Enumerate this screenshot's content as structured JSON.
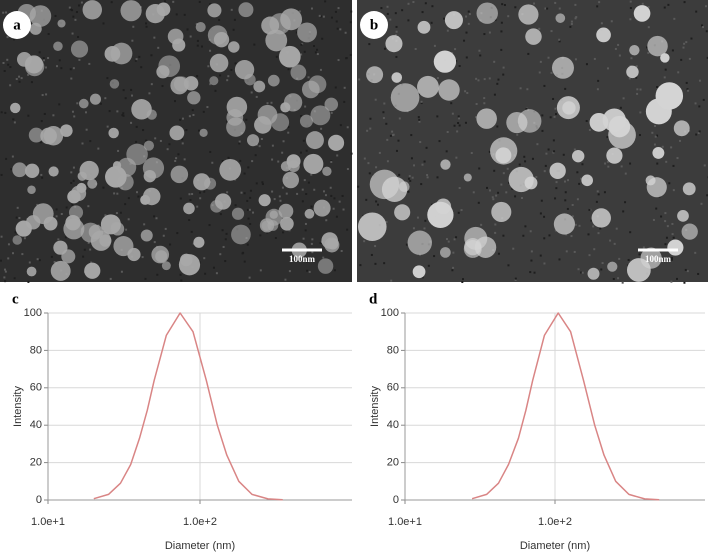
{
  "images": [
    {
      "label": "a",
      "scale_bar": "100nm"
    },
    {
      "label": "b",
      "scale_bar": "100nm"
    }
  ],
  "chart_data": [
    {
      "type": "line",
      "panel": "c",
      "x_label": "Diameter (nm)",
      "y_label": "Intensity",
      "xscale": "log",
      "xlim": [
        10,
        1000
      ],
      "xticks": [
        {
          "value": 10,
          "label": "1.0e+1"
        },
        {
          "value": 100,
          "label": "1.0e+2"
        }
      ],
      "ylim": [
        0,
        100
      ],
      "yticks": [
        0,
        20,
        40,
        60,
        80,
        100
      ],
      "grid": true,
      "series": [
        {
          "color": "#d98585",
          "x": [
            20,
            25,
            30,
            35,
            40,
            45,
            50,
            60,
            74,
            90,
            110,
            130,
            150,
            180,
            220,
            280,
            350
          ],
          "values": [
            0.7,
            3,
            9,
            19,
            33,
            48,
            64,
            88,
            100,
            90,
            64,
            40,
            24,
            10,
            3,
            0.6,
            0.1
          ]
        }
      ]
    },
    {
      "type": "line",
      "panel": "d",
      "x_label": "Diameter (nm)",
      "y_label": "Intensity",
      "xscale": "log",
      "xlim": [
        10,
        1000
      ],
      "xticks": [
        {
          "value": 10,
          "label": "1.0e+1"
        },
        {
          "value": 100,
          "label": "1.0e+2"
        }
      ],
      "ylim": [
        0,
        100
      ],
      "yticks": [
        0,
        20,
        40,
        60,
        80,
        100
      ],
      "grid": true,
      "series": [
        {
          "color": "#d98585",
          "x": [
            28,
            35,
            42,
            49,
            57,
            64,
            71,
            85,
            105,
            127,
            155,
            184,
            212,
            254,
            311,
            396,
            495
          ],
          "values": [
            0.7,
            3,
            9,
            19,
            33,
            48,
            64,
            88,
            100,
            90,
            64,
            40,
            24,
            10,
            3,
            0.6,
            0.1
          ]
        }
      ]
    }
  ]
}
